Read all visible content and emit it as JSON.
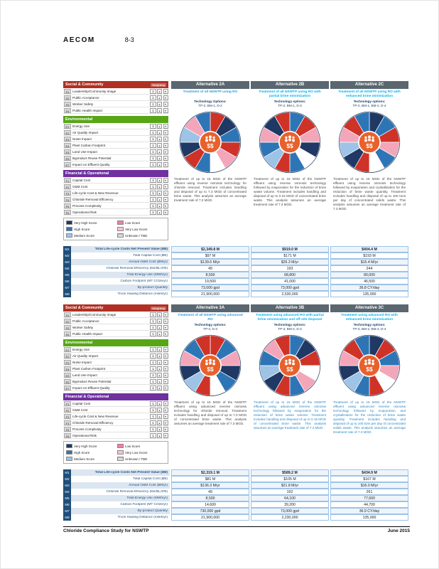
{
  "header": {
    "brand": "AECOM",
    "page_number": "8-3"
  },
  "footer": {
    "left": "Chloride Compliance  Study for NSWTP",
    "right": "June  2015"
  },
  "colors": {
    "social": "#b03024",
    "environmental": "#58a618",
    "financial": "#7030a0",
    "alt_header": "#5a6670",
    "metric_code": "#1f4e79",
    "center_icon": "#e8612c"
  },
  "criteria_sections": [
    {
      "title": "Social & Community",
      "weighting_label": "Weighting",
      "color_key": "social",
      "items": [
        {
          "code": "S1",
          "label": "Leadership/Community Image",
          "weight": "1"
        },
        {
          "code": "S2",
          "label": "Public Acceptance",
          "weight": "1"
        },
        {
          "code": "S3",
          "label": "Worker Safety",
          "weight": "1"
        },
        {
          "code": "S4",
          "label": "Public Health Impact",
          "weight": "1"
        }
      ]
    },
    {
      "title": "Environmental",
      "color_key": "environmental",
      "items": [
        {
          "code": "E1",
          "label": "Energy Use",
          "weight": "1"
        },
        {
          "code": "E2",
          "label": "Air Quality Impact",
          "weight": "1"
        },
        {
          "code": "E3",
          "label": "Noise Impact",
          "weight": "1"
        },
        {
          "code": "E4",
          "label": "Plant Carbon Footprint",
          "weight": "1"
        },
        {
          "code": "E5",
          "label": "Land Use Impact",
          "weight": "1"
        },
        {
          "code": "E6",
          "label": "Byproduct Reuse Potential",
          "weight": "1"
        },
        {
          "code": "E7",
          "label": "Impact on Effluent Quality",
          "weight": "1"
        }
      ]
    },
    {
      "title": "Financial & Operational",
      "color_key": "financial",
      "items": [
        {
          "code": "F1",
          "label": "Capital Cost",
          "weight": "1"
        },
        {
          "code": "F2",
          "label": "O&M Cost",
          "weight": "1"
        },
        {
          "code": "F3",
          "label": "Life-cycle Cost & New Revenue",
          "weight": "1"
        },
        {
          "code": "F4",
          "label": "Chloride Removal Efficiency",
          "weight": "1"
        },
        {
          "code": "F5",
          "label": "Process Complexity",
          "weight": "1"
        },
        {
          "code": "F6",
          "label": "Operational Risk",
          "weight": "1"
        }
      ]
    }
  ],
  "legend": {
    "left": [
      {
        "label": "Very High Score",
        "color": "#1f3864"
      },
      {
        "label": "High Score",
        "color": "#2e75b6"
      },
      {
        "label": "Medium Score",
        "color": "#9dc3e6"
      }
    ],
    "right": [
      {
        "label": "Low Score",
        "color": "#f07ea4"
      },
      {
        "label": "Very Low Score",
        "color": "#f9c2d2"
      },
      {
        "label": "Unknown / TBD",
        "color": "#bfbfbf",
        "swatch_text": "TBD"
      }
    ]
  },
  "metric_rows": [
    {
      "code": "M1",
      "label": "Total Life-cycle Costs Net Present Value ($M)"
    },
    {
      "code": "M2",
      "label": "Total Capital Cost ($M)"
    },
    {
      "code": "M3",
      "label": "Annual O&M Cost ($M/yr)"
    },
    {
      "code": "M4",
      "label": "Chloride Removal Efficiency (lbs/$1,000)"
    },
    {
      "code": "M5",
      "label": "Total Energy Use (MWh/yr)"
    },
    {
      "code": "M6",
      "label": "Carbon Footprint (MT CO2e/yr)"
    },
    {
      "code": "M7",
      "label": "By-product Quantity"
    },
    {
      "code": "M8",
      "label": "Truck Hauling Distance (miles/yr)"
    }
  ],
  "wheel_center_symbol": "$$",
  "blocks": [
    {
      "alternatives": [
        {
          "title": "Alternative 2A",
          "subtitle": "Treatment of all NSWTP using RO",
          "subtitle_color": "#2e9bd6",
          "desc_color": "#444444",
          "tech_label": "Technology Options:",
          "tech_codes": "TP-2, BM-1, D-2",
          "description": "Treatment of up to 15 MGD of the NSWTP effluent using reverse osmosis technology for chloride removal. Treatment includes handling and disposal of up to 7.3 MGD of concentrated brine waste. This analysis assumes an average treatment rate of 7.3 MGD.",
          "wheel": [
            "#cf3227",
            "#1f3864",
            "#2e75b6",
            "#cf3227",
            "#f3a6ba",
            "#ffffff",
            "#2e75b6",
            "#cf3227",
            "#1f3864",
            "#9dc3e6",
            "#f3a6ba",
            "#2e75b6"
          ]
        },
        {
          "title": "Alternative 2B",
          "subtitle": "Treatment of all NSWTP using RO with partial brine minimization",
          "subtitle_color": "#00b0f0",
          "desc_color": "#444444",
          "tech_label": "Technology options:",
          "tech_codes": "TP-2, BM-1, D-3",
          "description": "Treatment of up to 15 MGD of the NSWTP effluent using reverse osmosis technology followed by evaporation for the reduction of brine waste volume. Treatment includes handling and disposal of up to 0.15 MGD of concentrated brine waste. This analysis assumes an average treatment rate of 7.3 MGD.",
          "wheel": [
            "#2e75b6",
            "#cf3227",
            "#f3a6ba",
            "#1f3864",
            "#ffffff",
            "#2e75b6",
            "#cf3227",
            "#9dc3e6",
            "#2e75b6",
            "#f3a6ba",
            "#1f3864",
            "#cf3227"
          ]
        },
        {
          "title": "Alternative 2C",
          "subtitle": "Treatment of all NSWTP using RO with enhanced brine minimization",
          "subtitle_color": "#00b0f0",
          "desc_color": "#444444",
          "tech_label": "Technology options:",
          "tech_codes": "TP-2, BM-1, BM-2, D-4",
          "description": "Treatment of up to 15 MGD of the NSWTP effluent using reverse osmosis technology followed by evaporation and crystallization for the reduction of brine waste quantity. Treatment includes handling and disposal of up to 100 tons per day of concentrated solids waste. This analysis assumes an average treatment rate of 7.3 MGD.",
          "wheel": [
            "#1f3864",
            "#2e75b6",
            "#cf3227",
            "#f3a6ba",
            "#2e75b6",
            "#ffffff",
            "#cf3227",
            "#1f3864",
            "#9dc3e6",
            "#f3a6ba",
            "#cf3227",
            "#2e75b6"
          ]
        }
      ],
      "metric_values": [
        [
          "$2,349.8 M",
          "$919.0 M",
          "$404.4 M"
        ],
        [
          "$97 M",
          "$171 M",
          "$193 M"
        ],
        [
          "$139.6 M/yr",
          "$26.3 M/yr",
          "$15.4 M/yr"
        ],
        [
          "49",
          "193",
          "244"
        ],
        [
          "8,500",
          "68,800",
          "80,000"
        ],
        [
          "19,500",
          "41,000",
          "46,500"
        ],
        [
          "73,000 gpd",
          "73,000 gpd",
          "36.8 CY/day"
        ],
        [
          "21,900,000",
          "2,530,000",
          "135,000"
        ]
      ]
    },
    {
      "alternatives": [
        {
          "title": "Alternative 3A",
          "subtitle": "Treatment of all NSWTP using advanced RO",
          "subtitle_color": "#2e9bd6",
          "desc_color": "#444444",
          "tech_label": "Technology options:",
          "tech_codes": "TP-3, D-3",
          "description": "Treatment of up to 15 MGD of the NSWTP effluent using advanced reverse osmosis technology for chloride removal. Treatment includes handling and disposal of up to 7.3 MGD of concentrated brine waste. This analysis assumes an average treatment rate of 7.3 MGD.",
          "wheel": [
            "#cf3227",
            "#2e75b6",
            "#f3a6ba",
            "#1f3864",
            "#2e75b6",
            "#ffffff",
            "#cf3227",
            "#9dc3e6",
            "#1f3864",
            "#f3a6ba",
            "#2e75b6",
            "#cf3227"
          ]
        },
        {
          "title": "Alternative 3B",
          "subtitle": "Treatment using advanced RO with partial brine minimization and off-site disposal",
          "subtitle_color": "#00b0f0",
          "desc_color": "#2e86c1",
          "tech_label": "Technology options:",
          "tech_codes": "TP-3, BM-2, D-3",
          "description": "Treatment of up to 15 MGD of the NSWTP effluent using advanced reverse osmosis technology followed by evaporation for the reduction of brine waste volume. Treatment includes handling and disposal of up to 0.15 MGD of concentrated brine waste. This analysis assumes an average treatment rate of 7.3 MGD.",
          "wheel": [
            "#2e75b6",
            "#1f3864",
            "#cf3227",
            "#ffffff",
            "#f3a6ba",
            "#2e75b6",
            "#cf3227",
            "#1f3864",
            "#9dc3e6",
            "#2e75b6",
            "#f3a6ba",
            "#cf3227"
          ]
        },
        {
          "title": "Alternative 3C",
          "subtitle": "Treatment using advanced RO with enhanced brine minimization",
          "subtitle_color": "#00b0f0",
          "desc_color": "#2e86c1",
          "tech_label": "Technology options:",
          "tech_codes": "TP-3, BM-2, BM-4, D-4",
          "description": "Treatment of up to 15 MGD of the NSWTP effluent using advanced reverse osmosis technology followed by evaporation and crystallization for the reduction of brine waste quantity. Treatment includes handling and disposal of up to 100 tons per day of concentrated solids waste. This analysis assumes an average treatment rate of 7.3 MGD.",
          "wheel": [
            "#1f3864",
            "#cf3227",
            "#2e75b6",
            "#f3a6ba",
            "#ffffff",
            "#cf3227",
            "#2e75b6",
            "#9dc3e6",
            "#1f3864",
            "#f3a6ba",
            "#cf3227",
            "#2e75b6"
          ]
        }
      ],
      "metric_values": [
        [
          "$2,319.1 M",
          "$589.2 M",
          "$434.9 M"
        ],
        [
          "$81 M",
          "$105 M",
          "$167 M"
        ],
        [
          "$136.3 M/yr",
          "$21.8 M/yr",
          "$16.0 M/yr"
        ],
        [
          "49",
          "192",
          "261"
        ],
        [
          "8,500",
          "64,100",
          "77,600"
        ],
        [
          "14,600",
          "39,200",
          "44,700"
        ],
        [
          "730,000 gpd",
          "73,000 gpd",
          "36.9 CY/day"
        ],
        [
          "21,900,000",
          "2,230,000",
          "135,000"
        ]
      ]
    }
  ]
}
